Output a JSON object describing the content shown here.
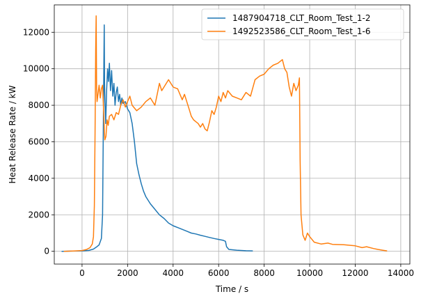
{
  "chart_data": {
    "type": "line",
    "title": "",
    "xlabel": "Time / s",
    "ylabel": "Heat Release Rate / kW",
    "xlim": [
      -1220,
      14400
    ],
    "ylim": [
      -700,
      13500
    ],
    "xticks": [
      0,
      2000,
      4000,
      6000,
      8000,
      10000,
      12000,
      14000
    ],
    "yticks": [
      0,
      2000,
      4000,
      6000,
      8000,
      10000,
      12000
    ],
    "grid": true,
    "legend_position": "top-right",
    "series": [
      {
        "name": "1487904718_CLT_Room_Test_1-2",
        "color": "#1f77b4",
        "points": [
          [
            -900,
            0
          ],
          [
            -500,
            10
          ],
          [
            0,
            20
          ],
          [
            300,
            50
          ],
          [
            500,
            120
          ],
          [
            650,
            250
          ],
          [
            750,
            350
          ],
          [
            850,
            700
          ],
          [
            900,
            2000
          ],
          [
            930,
            6000
          ],
          [
            960,
            10500
          ],
          [
            975,
            12400
          ],
          [
            990,
            9000
          ],
          [
            1010,
            8000
          ],
          [
            1040,
            7000
          ],
          [
            1080,
            8800
          ],
          [
            1120,
            10000
          ],
          [
            1160,
            9300
          ],
          [
            1200,
            10300
          ],
          [
            1250,
            8800
          ],
          [
            1300,
            9900
          ],
          [
            1350,
            8500
          ],
          [
            1400,
            9200
          ],
          [
            1450,
            8000
          ],
          [
            1500,
            8700
          ],
          [
            1550,
            9000
          ],
          [
            1600,
            8200
          ],
          [
            1650,
            8600
          ],
          [
            1700,
            8000
          ],
          [
            1750,
            8400
          ],
          [
            1800,
            8100
          ],
          [
            1900,
            8200
          ],
          [
            2000,
            7800
          ],
          [
            2100,
            7600
          ],
          [
            2200,
            7000
          ],
          [
            2300,
            6000
          ],
          [
            2400,
            4800
          ],
          [
            2500,
            4200
          ],
          [
            2600,
            3700
          ],
          [
            2700,
            3300
          ],
          [
            2800,
            3000
          ],
          [
            3000,
            2600
          ],
          [
            3200,
            2300
          ],
          [
            3400,
            2000
          ],
          [
            3600,
            1800
          ],
          [
            3800,
            1550
          ],
          [
            4000,
            1400
          ],
          [
            4200,
            1300
          ],
          [
            4400,
            1200
          ],
          [
            4600,
            1100
          ],
          [
            4800,
            1000
          ],
          [
            5000,
            950
          ],
          [
            5200,
            880
          ],
          [
            5400,
            820
          ],
          [
            5600,
            760
          ],
          [
            5800,
            700
          ],
          [
            6000,
            650
          ],
          [
            6200,
            600
          ],
          [
            6300,
            550
          ],
          [
            6350,
            250
          ],
          [
            6450,
            100
          ],
          [
            6800,
            60
          ],
          [
            7200,
            30
          ],
          [
            7500,
            20
          ]
        ]
      },
      {
        "name": "1492523586_CLT_Room_Test_1-6",
        "color": "#ff7f0e",
        "points": [
          [
            -800,
            0
          ],
          [
            -300,
            20
          ],
          [
            0,
            40
          ],
          [
            200,
            100
          ],
          [
            350,
            200
          ],
          [
            450,
            400
          ],
          [
            500,
            800
          ],
          [
            540,
            2500
          ],
          [
            570,
            6500
          ],
          [
            600,
            11000
          ],
          [
            620,
            12900
          ],
          [
            640,
            9000
          ],
          [
            660,
            8200
          ],
          [
            700,
            8600
          ],
          [
            750,
            9100
          ],
          [
            800,
            8400
          ],
          [
            850,
            8900
          ],
          [
            900,
            9100
          ],
          [
            950,
            7600
          ],
          [
            1000,
            6100
          ],
          [
            1050,
            6300
          ],
          [
            1100,
            7200
          ],
          [
            1150,
            6900
          ],
          [
            1200,
            7400
          ],
          [
            1300,
            7500
          ],
          [
            1400,
            7200
          ],
          [
            1500,
            7600
          ],
          [
            1600,
            7500
          ],
          [
            1700,
            8000
          ],
          [
            1800,
            8300
          ],
          [
            1900,
            7900
          ],
          [
            2000,
            8200
          ],
          [
            2100,
            8500
          ],
          [
            2200,
            8000
          ],
          [
            2400,
            7700
          ],
          [
            2600,
            7900
          ],
          [
            2800,
            8200
          ],
          [
            3000,
            8400
          ],
          [
            3200,
            8000
          ],
          [
            3300,
            8600
          ],
          [
            3400,
            9200
          ],
          [
            3500,
            8800
          ],
          [
            3600,
            9000
          ],
          [
            3800,
            9400
          ],
          [
            4000,
            9000
          ],
          [
            4200,
            8900
          ],
          [
            4400,
            8300
          ],
          [
            4500,
            8600
          ],
          [
            4600,
            8200
          ],
          [
            4700,
            7800
          ],
          [
            4800,
            7400
          ],
          [
            4900,
            7200
          ],
          [
            5000,
            7100
          ],
          [
            5100,
            7000
          ],
          [
            5200,
            6800
          ],
          [
            5300,
            7000
          ],
          [
            5400,
            6700
          ],
          [
            5500,
            6600
          ],
          [
            5600,
            7100
          ],
          [
            5700,
            7700
          ],
          [
            5800,
            7500
          ],
          [
            5900,
            7900
          ],
          [
            6000,
            8500
          ],
          [
            6100,
            8200
          ],
          [
            6200,
            8700
          ],
          [
            6300,
            8400
          ],
          [
            6400,
            8800
          ],
          [
            6600,
            8500
          ],
          [
            6800,
            8400
          ],
          [
            7000,
            8300
          ],
          [
            7200,
            8700
          ],
          [
            7400,
            8500
          ],
          [
            7600,
            9400
          ],
          [
            7800,
            9600
          ],
          [
            8000,
            9700
          ],
          [
            8200,
            10000
          ],
          [
            8400,
            10200
          ],
          [
            8600,
            10300
          ],
          [
            8800,
            10500
          ],
          [
            8900,
            10000
          ],
          [
            9000,
            9800
          ],
          [
            9100,
            9000
          ],
          [
            9200,
            8500
          ],
          [
            9300,
            9200
          ],
          [
            9400,
            8800
          ],
          [
            9500,
            9100
          ],
          [
            9550,
            9500
          ],
          [
            9580,
            5000
          ],
          [
            9620,
            2000
          ],
          [
            9700,
            900
          ],
          [
            9800,
            600
          ],
          [
            9900,
            1000
          ],
          [
            10000,
            800
          ],
          [
            10200,
            500
          ],
          [
            10500,
            400
          ],
          [
            10800,
            450
          ],
          [
            11000,
            380
          ],
          [
            11500,
            360
          ],
          [
            12000,
            300
          ],
          [
            12300,
            200
          ],
          [
            12500,
            250
          ],
          [
            12800,
            150
          ],
          [
            13000,
            100
          ],
          [
            13200,
            60
          ],
          [
            13400,
            20
          ]
        ]
      }
    ]
  }
}
